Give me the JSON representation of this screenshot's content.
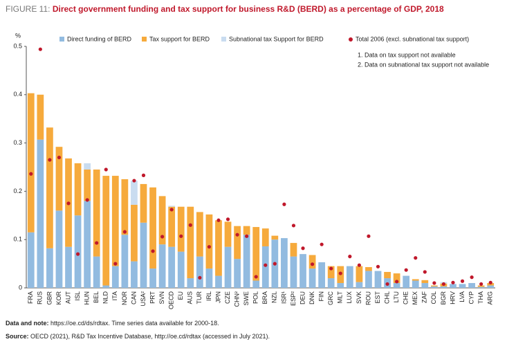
{
  "chart_data": {
    "type": "bar",
    "title_prefix": "FIGURE 11:",
    "title": "Direct government funding and tax support for business R&D (BERD) as a percentage of GDP, 2018",
    "y_unit": "%",
    "categories": [
      "FRA",
      "RUS",
      "GBR",
      "KOR",
      "AUT",
      "ISL",
      "HUN",
      "BEL",
      "NLD",
      "ITA",
      "NOR",
      "CAN",
      "USA²",
      "PRT",
      "SVN",
      "OECD",
      "EU",
      "AUS",
      "TUR",
      "IRL",
      "JPN",
      "CZE",
      "CHN²",
      "SWE",
      "POL",
      "BRA",
      "NZL",
      "ISR¹",
      "ESP²",
      "DEU",
      "DNK",
      "FIN",
      "GRC",
      "MLT",
      "LUX",
      "SVK",
      "ROU",
      "EST",
      "CHL",
      "LTU",
      "CHE",
      "MEX",
      "ZAF",
      "COL",
      "BGR",
      "HRV",
      "LVA",
      "CYP",
      "THA",
      "ARG"
    ],
    "series": [
      {
        "name": "Direct funding of BERD",
        "color": "#92bbe0",
        "values": [
          0.115,
          0.307,
          0.082,
          0.16,
          0.085,
          0.15,
          0.18,
          0.065,
          0.005,
          0.045,
          0.11,
          0.055,
          0.135,
          0.04,
          0.09,
          0.085,
          0.075,
          0.02,
          0.065,
          0.04,
          0.025,
          0.085,
          0.06,
          0.11,
          0.015,
          0.086,
          0.1,
          0.103,
          0.065,
          0.07,
          0.04,
          0.053,
          0.02,
          0.01,
          0.045,
          0.012,
          0.035,
          0.035,
          0.02,
          0.01,
          0.025,
          0.015,
          0.01,
          0.003,
          0.003,
          0.008,
          0.008,
          0.01,
          0.002,
          0.005
        ]
      },
      {
        "name": "Tax support for BERD",
        "color": "#f6aa3c",
        "values": [
          0.288,
          0.093,
          0.25,
          0.132,
          0.183,
          0.108,
          0.065,
          0.18,
          0.227,
          0.187,
          0.115,
          0.117,
          0.08,
          0.168,
          0.1,
          0.083,
          0.093,
          0.148,
          0.092,
          0.112,
          0.115,
          0.052,
          0.068,
          0.018,
          0.111,
          0.037,
          0.008,
          null,
          0.028,
          0,
          0.028,
          0,
          0.025,
          0.035,
          null,
          0.033,
          0.008,
          0,
          0.013,
          0.02,
          null,
          0.003,
          0.006,
          0.002,
          0.006,
          0,
          0,
          0,
          0.003,
          0.005
        ]
      },
      {
        "name": "Subnational tax Support for BERD",
        "color": "#c9dcf0",
        "values": [
          null,
          null,
          null,
          null,
          null,
          null,
          0.013,
          null,
          null,
          null,
          null,
          0.05,
          null,
          null,
          null,
          0.002,
          null,
          null,
          null,
          null,
          null,
          null,
          null,
          null,
          null,
          null,
          null,
          null,
          null,
          null,
          null,
          null,
          null,
          null,
          null,
          null,
          null,
          null,
          null,
          null,
          null,
          null,
          null,
          null,
          0.003,
          null,
          null,
          null,
          null,
          null
        ]
      },
      {
        "name": "Total 2006 (excl. subnational tax support)",
        "color": "#c0182b",
        "marker": "dot",
        "values": [
          0.236,
          0.494,
          0.265,
          0.27,
          0.175,
          0.07,
          0.182,
          0.093,
          0.245,
          0.05,
          0.116,
          0.222,
          0.233,
          0.076,
          0.106,
          0.162,
          0.107,
          0.13,
          0.021,
          0.085,
          0.14,
          0.142,
          0.11,
          0.107,
          0.023,
          0.047,
          0.05,
          0.173,
          0.129,
          0.082,
          0.049,
          0.09,
          0.04,
          0.03,
          0.065,
          0.047,
          0.107,
          0.044,
          0.008,
          0.013,
          0.037,
          0.062,
          0.033,
          0.01,
          0.008,
          0.011,
          0.014,
          0.022,
          0.008,
          0.011
        ]
      }
    ],
    "notes": [
      "1. Data on tax support not available",
      "2. Data on subnational tax support not available"
    ],
    "ylim": [
      0,
      0.5
    ],
    "yticks": [
      0,
      0.1,
      0.2,
      0.3,
      0.4,
      0.5
    ]
  },
  "footer": {
    "data_label": "Data and note:",
    "data_text": " https://oe.cd/ds/rdtax. Time series data available for 2000-18.",
    "source_label": "Source:",
    "source_text": " OECD (2021), R&D Tax Incentive Database, http://oe.cd/rdtax (accessed in July 2021)."
  }
}
